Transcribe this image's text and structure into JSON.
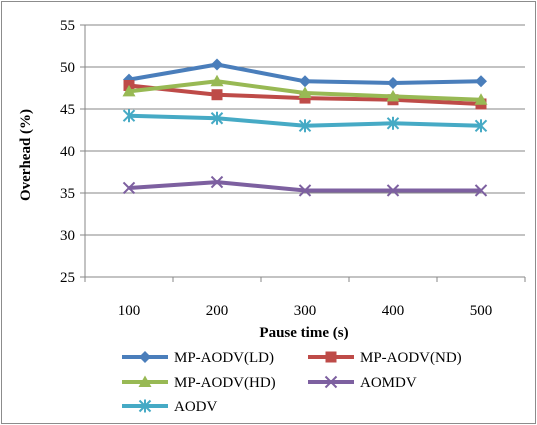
{
  "chart_data": {
    "type": "line",
    "title": "",
    "xlabel": "Pause time (s)",
    "ylabel": "Overhead (%)",
    "categories": [
      "100",
      "200",
      "300",
      "400",
      "500"
    ],
    "ylim": [
      25,
      55
    ],
    "yticks": [
      25,
      30,
      35,
      40,
      45,
      50,
      55
    ],
    "grid": "horizontal",
    "legend_position": "bottom",
    "series": [
      {
        "name": "MP-AODV(LD)",
        "color": "#4a7ebb",
        "marker": "diamond",
        "values": [
          48.5,
          50.3,
          48.3,
          48.1,
          48.3
        ]
      },
      {
        "name": "MP-AODV(ND)",
        "color": "#be4b48",
        "marker": "square",
        "values": [
          47.8,
          46.7,
          46.3,
          46.1,
          45.6
        ]
      },
      {
        "name": "MP-AODV(HD)",
        "color": "#98b954",
        "marker": "triangle",
        "values": [
          47.1,
          48.3,
          46.9,
          46.5,
          46.1
        ]
      },
      {
        "name": "AOMDV",
        "color": "#7d60a0",
        "marker": "x",
        "values": [
          35.6,
          36.3,
          35.3,
          35.3,
          35.3
        ]
      },
      {
        "name": "AODV",
        "color": "#46aac5",
        "marker": "star",
        "values": [
          44.2,
          43.9,
          43.0,
          43.3,
          43.0
        ]
      }
    ]
  }
}
